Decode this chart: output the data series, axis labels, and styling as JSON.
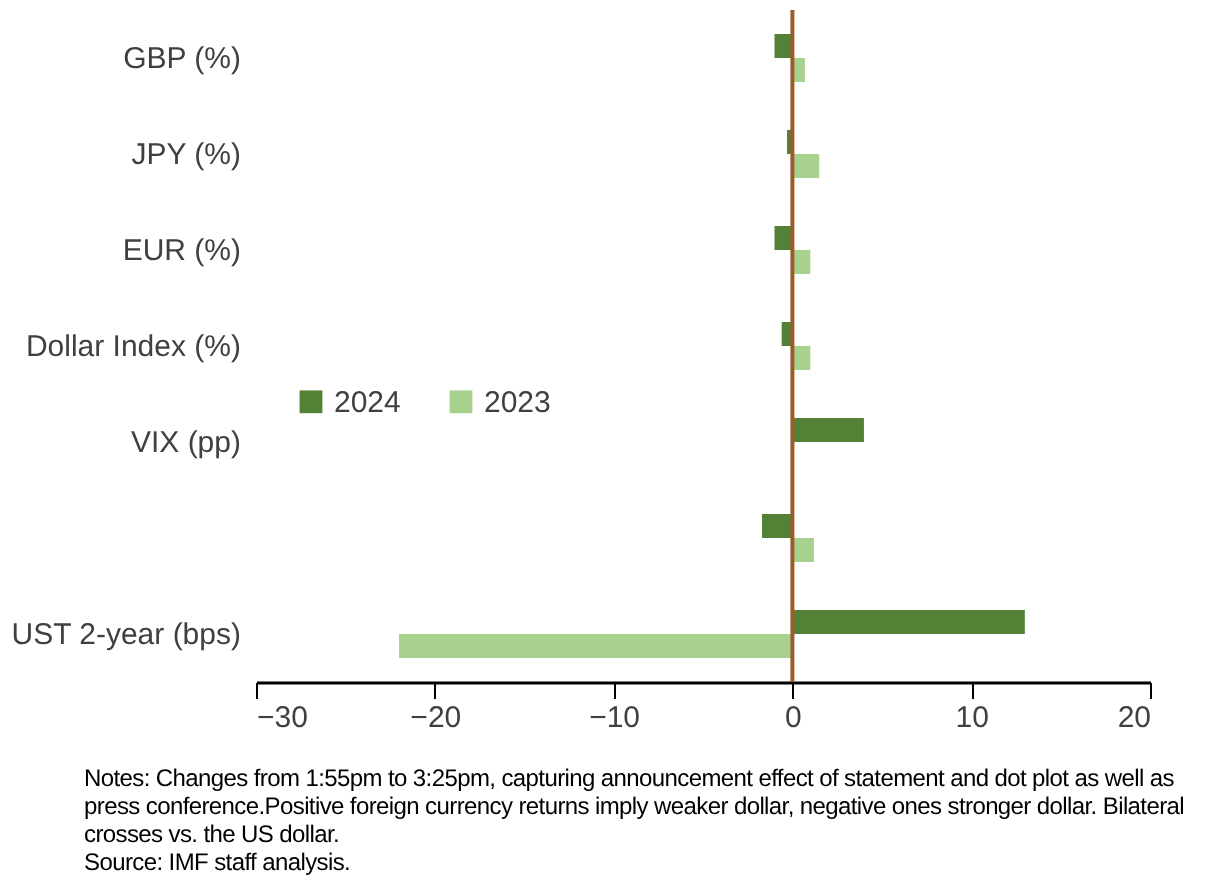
{
  "chart_data": {
    "type": "bar",
    "orientation": "horizontal",
    "categories": [
      "GBP (%)",
      "JPY (%)",
      "EUR (%)",
      "Dollar Index (%)",
      "VIX (pp)",
      null,
      "UST 2-year (bps)"
    ],
    "series": [
      {
        "name": "2024",
        "color": "#538135",
        "values": [
          -1.0,
          -0.3,
          -1.0,
          -0.6,
          4.0,
          -1.7,
          13.0
        ]
      },
      {
        "name": "2023",
        "color": "#a9d18e",
        "values": [
          0.7,
          1.5,
          1.0,
          1.0,
          null,
          1.2,
          -22.0
        ]
      }
    ],
    "xlim": [
      -30,
      20
    ],
    "xticks": [
      -30,
      -20,
      -10,
      0,
      10,
      20
    ],
    "ref_lines": [
      {
        "axis": "x",
        "value": 0,
        "color": "#9c5c2e"
      }
    ],
    "legend": "left",
    "grid": false,
    "annotations": [
      "Notes: Changes from 1:55pm to 3:25pm, capturing announcement effect of statement and dot plot as well as press conference.Positive foreign currency returns imply weaker dollar, negative ones stronger dollar. Bilateral crosses vs. the US dollar.",
      "Source: IMF staff analysis."
    ]
  }
}
